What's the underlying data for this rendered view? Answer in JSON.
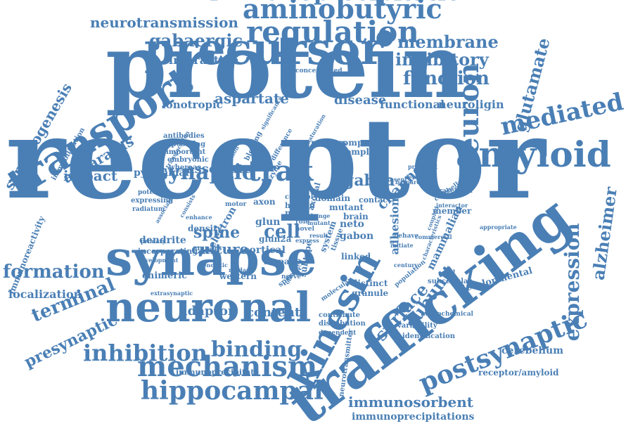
{
  "colors": {
    "word": "#4a7fb5",
    "background": "#ffffff"
  },
  "words": [
    {
      "id": "receptor",
      "text": "receptor"
    },
    {
      "id": "protein",
      "text": "protein"
    },
    {
      "id": "precursor",
      "text": "precursor"
    },
    {
      "id": "trafficking",
      "text": "trafficking"
    },
    {
      "id": "synapse",
      "text": "synapse"
    },
    {
      "id": "neuronal",
      "text": "neuronal"
    },
    {
      "id": "transport",
      "text": "transport"
    },
    {
      "id": "kinesin",
      "text": "kinesin"
    },
    {
      "id": "amyloid",
      "text": "amyloid"
    },
    {
      "id": "regulation",
      "text": "regulation"
    },
    {
      "id": "aminobutyric",
      "text": "aminobutyric"
    },
    {
      "id": "immunoprecipitation",
      "text": "immunoprecipitation"
    },
    {
      "id": "mechanism",
      "text": "mechanism"
    },
    {
      "id": "postsynaptic",
      "text": "postsynaptic"
    },
    {
      "id": "hippocampal",
      "text": "hippocampal"
    },
    {
      "id": "neuron",
      "text": "neuron"
    },
    {
      "id": "mediated",
      "text": "mediated"
    },
    {
      "id": "synaptic",
      "text": "synaptic"
    },
    {
      "id": "trak",
      "text": "trak"
    },
    {
      "id": "inhibition",
      "text": "inhibition"
    },
    {
      "id": "binding",
      "text": "binding"
    },
    {
      "id": "function",
      "text": "function"
    },
    {
      "id": "neurotransmission",
      "text": "neurotransmission"
    },
    {
      "id": "gabaergic",
      "text": "gabaergic"
    },
    {
      "id": "membrane",
      "text": "membrane"
    },
    {
      "id": "inhibitory",
      "text": "inhibitory"
    },
    {
      "id": "glutamate",
      "text": "glutamate"
    },
    {
      "id": "expression",
      "text": "expression"
    },
    {
      "id": "alzheimer",
      "text": "alzheimer"
    },
    {
      "id": "formation",
      "text": "formation"
    },
    {
      "id": "terminal",
      "text": "terminal"
    },
    {
      "id": "presynaptic",
      "text": "presynaptic"
    },
    {
      "id": "surface",
      "text": "surface"
    },
    {
      "id": "subunit",
      "text": "subunit"
    },
    {
      "id": "synaptogenesis",
      "text": "synaptogenesis"
    },
    {
      "id": "apparatus",
      "text": "apparatus"
    },
    {
      "id": "impact",
      "text": "impact"
    },
    {
      "id": "aspartate",
      "text": "aspartate"
    },
    {
      "id": "interaction",
      "text": "interaction"
    },
    {
      "id": "ionotropic",
      "text": "ionotropic"
    },
    {
      "id": "disease",
      "text": "disease"
    },
    {
      "id": "functional",
      "text": "functional"
    },
    {
      "id": "neuroligin",
      "text": "neuroligin"
    },
    {
      "id": "associate",
      "text": "associate"
    },
    {
      "id": "gabaa",
      "text": "gabaa"
    },
    {
      "id": "channel",
      "text": "channel"
    },
    {
      "id": "cell",
      "text": "cell"
    },
    {
      "id": "spine",
      "text": "spine"
    },
    {
      "id": "culture",
      "text": "culture"
    },
    {
      "id": "dendrite",
      "text": "dendrite"
    },
    {
      "id": "pyramidal",
      "text": "pyramidal"
    },
    {
      "id": "adaptor",
      "text": "adaptor"
    },
    {
      "id": "content",
      "text": "content"
    },
    {
      "id": "chimeric",
      "text": "chimeric"
    },
    {
      "id": "localization",
      "text": "localization"
    },
    {
      "id": "immunosorbent",
      "text": "immunosorbent"
    },
    {
      "id": "immunoprecipitations",
      "text": "immunoprecipitations"
    },
    {
      "id": "immunoprecipitate",
      "text": "immunoprecipitate"
    },
    {
      "id": "cerebellum",
      "text": "cerebellum"
    },
    {
      "id": "receptor_amyloid",
      "text": "receptor/amyloid"
    },
    {
      "id": "adhesion",
      "text": "adhesion"
    },
    {
      "id": "mammalian",
      "text": "mammalian"
    },
    {
      "id": "developmental",
      "text": "developmental"
    },
    {
      "id": "neto",
      "text": "neto"
    },
    {
      "id": "gabon",
      "text": "gabon"
    },
    {
      "id": "glun",
      "text": "glun"
    },
    {
      "id": "glun2a",
      "text": "glun2a"
    },
    {
      "id": "cortical",
      "text": "cortical"
    },
    {
      "id": "ampar",
      "text": "ampar"
    },
    {
      "id": "western",
      "text": "western"
    },
    {
      "id": "distinct",
      "text": "distinct"
    },
    {
      "id": "granule",
      "text": "granule"
    },
    {
      "id": "component",
      "text": "component"
    },
    {
      "id": "complex",
      "text": "complex"
    },
    {
      "id": "nmdars",
      "text": "nmdars"
    },
    {
      "id": "domain",
      "text": "domain"
    },
    {
      "id": "mutant",
      "text": "mutant"
    },
    {
      "id": "contact",
      "text": "contact"
    },
    {
      "id": "brain",
      "text": "brain"
    },
    {
      "id": "member",
      "text": "member"
    },
    {
      "id": "cerebellar",
      "text": "cerebellar"
    },
    {
      "id": "intracellular",
      "text": "intracellular"
    },
    {
      "id": "interactor",
      "text": "interactor"
    },
    {
      "id": "subcellular",
      "text": "subcellular"
    },
    {
      "id": "variability",
      "text": "variability"
    },
    {
      "id": "identification",
      "text": "identification"
    },
    {
      "id": "neurochemical",
      "text": "neurochemical"
    },
    {
      "id": "contribute",
      "text": "contribute"
    },
    {
      "id": "distribution",
      "text": "distribution"
    },
    {
      "id": "dependent",
      "text": "dependent"
    },
    {
      "id": "neurotransmitter",
      "text": "neurotransmitter"
    },
    {
      "id": "linked",
      "text": "linked"
    },
    {
      "id": "immunoreactivity",
      "text": "immunoreactivity"
    },
    {
      "id": "immobilization",
      "text": "immobilization"
    },
    {
      "id": "antibodies",
      "text": "antibodies"
    },
    {
      "id": "app695flag",
      "text": "app695flag"
    },
    {
      "id": "important",
      "text": "important"
    },
    {
      "id": "embryonic",
      "text": "embryonic"
    },
    {
      "id": "whereas",
      "text": "whereas"
    },
    {
      "id": "blotting",
      "text": "blotting"
    },
    {
      "id": "concentrated",
      "text": "concentrated"
    },
    {
      "id": "maturation",
      "text": "maturation"
    },
    {
      "id": "excitatory",
      "text": "excitatory"
    },
    {
      "id": "control",
      "text": "control"
    },
    {
      "id": "human",
      "text": "human"
    },
    {
      "id": "axonal",
      "text": "axonal"
    },
    {
      "id": "change",
      "text": "change"
    },
    {
      "id": "mutant2",
      "text": "mutant"
    },
    {
      "id": "expressing",
      "text": "expressing"
    },
    {
      "id": "radiatum",
      "text": "radiatum"
    },
    {
      "id": "potential",
      "text": "potential"
    },
    {
      "id": "primary",
      "text": "primary"
    },
    {
      "id": "incorporating",
      "text": "incorporating"
    },
    {
      "id": "density",
      "text": "density"
    },
    {
      "id": "ampars",
      "text": "ampars"
    },
    {
      "id": "dendritic",
      "text": "dendritic"
    },
    {
      "id": "development",
      "text": "development"
    },
    {
      "id": "electron",
      "text": "electron"
    },
    {
      "id": "extrasynaptic",
      "text": "extrasynaptic"
    },
    {
      "id": "axon",
      "text": "axon"
    },
    {
      "id": "miro",
      "text": "miro"
    },
    {
      "id": "role",
      "text": "role"
    },
    {
      "id": "novel",
      "text": "novel"
    },
    {
      "id": "system",
      "text": "system"
    },
    {
      "id": "subtype",
      "text": "subtype"
    },
    {
      "id": "behave",
      "text": "behave"
    },
    {
      "id": "population",
      "text": "population"
    },
    {
      "id": "molecular",
      "text": "molecular"
    },
    {
      "id": "appropriate",
      "text": "appropriate"
    },
    {
      "id": "enhance",
      "text": "enhance"
    },
    {
      "id": "tissue",
      "text": "tissue"
    },
    {
      "id": "specific",
      "text": "specific"
    },
    {
      "id": "observed",
      "text": "observed"
    },
    {
      "id": "motor",
      "text": "motor"
    },
    {
      "id": "enzyme",
      "text": "enzyme"
    },
    {
      "id": "model",
      "text": "model"
    },
    {
      "id": "difference",
      "text": "difference"
    },
    {
      "id": "initiate",
      "text": "initiate"
    },
    {
      "id": "century",
      "text": "century"
    },
    {
      "id": "prevalent",
      "text": "prevalent"
    },
    {
      "id": "barnard",
      "text": "barnard"
    },
    {
      "id": "gabars",
      "text": "gabars"
    },
    {
      "id": "association",
      "text": "association"
    },
    {
      "id": "nmdar",
      "text": "nmdar"
    },
    {
      "id": "nerve",
      "text": "nerve"
    },
    {
      "id": "activation",
      "text": "activation"
    },
    {
      "id": "consists",
      "text": "consists"
    },
    {
      "id": "translocation",
      "text": "translocation"
    },
    {
      "id": "significance",
      "text": "significance"
    },
    {
      "id": "detergent",
      "text": "detergent"
    },
    {
      "id": "present",
      "text": "present"
    },
    {
      "id": "characteristics",
      "text": "characteristics"
    },
    {
      "id": "express",
      "text": "express"
    },
    {
      "id": "result",
      "text": "result"
    },
    {
      "id": "coupled",
      "text": "coupled"
    },
    {
      "id": "commercial",
      "text": "commercial"
    }
  ]
}
